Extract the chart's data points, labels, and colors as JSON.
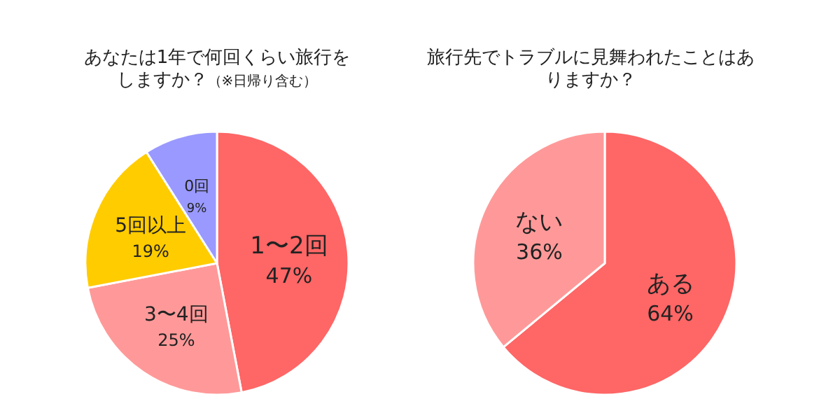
{
  "chart_data": [
    {
      "type": "pie",
      "title": "あなたは1年で何回くらい旅行をしますか？",
      "subtitle": "（※日帰り含む）",
      "categories": [
        "1〜2回",
        "3〜4回",
        "5回以上",
        "0回"
      ],
      "values": [
        47,
        25,
        19,
        9
      ],
      "value_labels": [
        "47%",
        "25%",
        "19%",
        "9%"
      ],
      "colors": [
        "#ff6666",
        "#ff9999",
        "#ffcc00",
        "#9999ff"
      ]
    },
    {
      "type": "pie",
      "title": "旅行先でトラブルに見舞われたことはありますか？",
      "categories": [
        "ある",
        "ない"
      ],
      "values": [
        64,
        36
      ],
      "value_labels": [
        "64%",
        "36%"
      ],
      "colors": [
        "#ff6666",
        "#ff9999"
      ]
    }
  ]
}
